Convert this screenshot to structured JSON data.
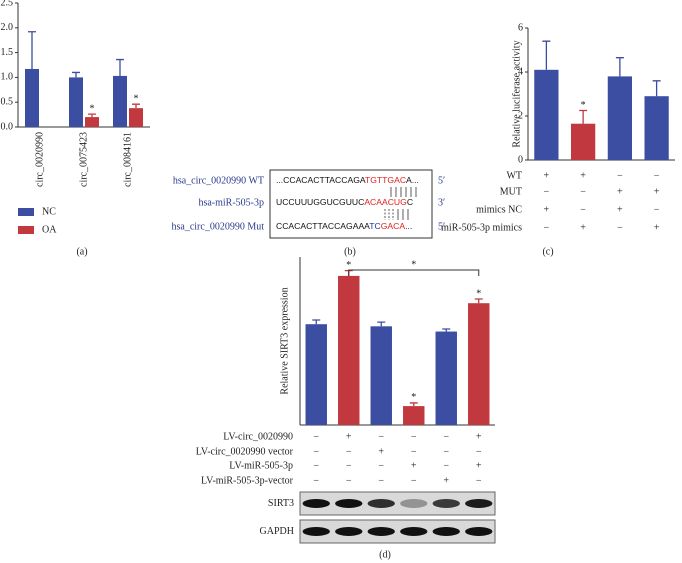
{
  "chart_data": [
    {
      "type": "bar",
      "panel_label": "(a)",
      "categories": [
        "circ_0020990",
        "circ_0075423",
        "circ_0084161"
      ],
      "series": [
        {
          "name": "NC",
          "color": "#3b4ea2",
          "values": [
            1.17,
            1.0,
            1.03
          ],
          "errors": [
            0.75,
            0.1,
            0.33
          ],
          "significance": [
            null,
            null,
            null
          ]
        },
        {
          "name": "OA",
          "color": "#c1393f",
          "values": [
            null,
            0.2,
            0.38
          ],
          "errors": [
            null,
            0.06,
            0.08
          ],
          "significance": [
            null,
            "*",
            "*"
          ]
        }
      ],
      "ylim": [
        0,
        2.5
      ],
      "yticks": [
        {
          "value": 0,
          "label": "0.0"
        },
        {
          "value": 0.5,
          "label": "0.5"
        },
        {
          "value": 1,
          "label": "1.0"
        },
        {
          "value": 1.5,
          "label": "1.5"
        },
        {
          "value": 2,
          "label": "2.0"
        },
        {
          "value": 2.5,
          "label": "2.5"
        }
      ]
    },
    {
      "type": "bar",
      "panel_label": "(c)",
      "y_label": "Relative luciferase activity",
      "values": [
        4.1,
        1.65,
        3.8,
        2.9
      ],
      "errors": [
        1.3,
        0.6,
        0.85,
        0.7
      ],
      "colors": [
        "#3b4ea2",
        "#c1393f",
        "#3b4ea2",
        "#3b4ea2"
      ],
      "significance": [
        null,
        "*",
        null,
        null
      ],
      "ylim": [
        0,
        6
      ],
      "yticks": [
        0,
        2,
        4,
        6
      ],
      "conditions": [
        {
          "label": "WT",
          "marks": [
            "+",
            "+",
            "−",
            "−"
          ]
        },
        {
          "label": "MUT",
          "marks": [
            "−",
            "−",
            "+",
            "+"
          ]
        },
        {
          "label": "mimics NC",
          "marks": [
            "+",
            "−",
            "+",
            "−"
          ]
        },
        {
          "label": "miR-505-3p mimics",
          "marks": [
            "−",
            "+",
            "−",
            "+"
          ]
        }
      ]
    },
    {
      "type": "bar",
      "panel_label": "(d)",
      "y_label": "Relative SIRT3 expression",
      "values": [
        4.8,
        7.1,
        4.7,
        0.9,
        4.45,
        5.8
      ],
      "errors": [
        0.2,
        0.25,
        0.2,
        0.15,
        0.12,
        0.2
      ],
      "colors": [
        "#3b4ea2",
        "#c1393f",
        "#3b4ea2",
        "#c1393f",
        "#3b4ea2",
        "#c1393f"
      ],
      "significance": [
        null,
        "*",
        null,
        "*",
        null,
        "*"
      ],
      "bracket_label": "*",
      "ylim": [
        0,
        8
      ],
      "conditions": [
        {
          "label": "LV-circ_0020990",
          "marks": [
            "−",
            "+",
            "−",
            "−",
            "−",
            "+"
          ]
        },
        {
          "label": "LV-circ_0020990 vector",
          "marks": [
            "−",
            "−",
            "+",
            "−",
            "−",
            "−"
          ]
        },
        {
          "label": "LV-miR-505-3p",
          "marks": [
            "−",
            "−",
            "−",
            "+",
            "−",
            "+"
          ]
        },
        {
          "label": "LV-miR-505-3p-vector",
          "marks": [
            "−",
            "−",
            "−",
            "−",
            "+",
            "−"
          ]
        }
      ],
      "blot_labels": [
        "SIRT3",
        "GAPDH"
      ]
    }
  ],
  "diagram": {
    "panel_label": "(b)",
    "rows": [
      {
        "label": "hsa_circ_0020990 WT",
        "segments": [
          {
            "text": "...CCACACTTACCAGA",
            "color": "#111111"
          },
          {
            "text": "TGTTGAC",
            "color": "#e0201c"
          },
          {
            "text": "A...",
            "color": "#111111"
          }
        ],
        "end": "5′"
      },
      {
        "label": "hsa-miR-505-3p",
        "segments": [
          {
            "text": "UCCUUUGGUCGUUC",
            "color": "#111111"
          },
          {
            "text": "ACAACUG",
            "color": "#e0201c"
          },
          {
            "text": "C",
            "color": "#111111"
          }
        ],
        "end": "3′"
      },
      {
        "label": "hsa_circ_0020990 Mut",
        "segments": [
          {
            "text": "CCACACTTACCAGAAA",
            "color": "#111111"
          },
          {
            "text": "TC",
            "color": "#2431a8"
          },
          {
            "text": "GACA",
            "color": "#e0201c"
          },
          {
            "text": "...",
            "color": "#111111"
          }
        ],
        "end": "5′"
      }
    ]
  }
}
